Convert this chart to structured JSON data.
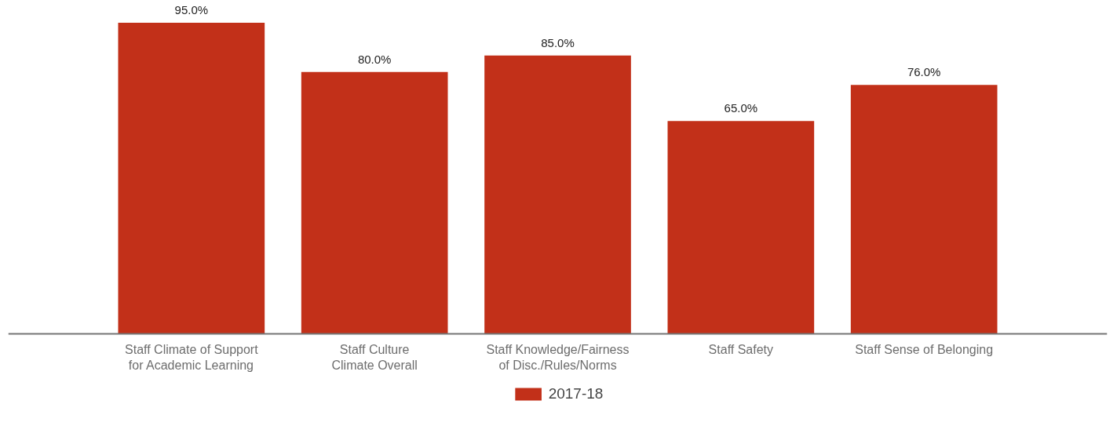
{
  "chart_data": {
    "type": "bar",
    "categories": [
      "Staff Climate of Support\nfor Academic Learning",
      "Staff Culture\nClimate Overall",
      "Staff Knowledge/Fairness\nof Disc./Rules/Norms",
      "Staff Safety",
      "Staff Sense of Belonging"
    ],
    "series": [
      {
        "name": "2017-18",
        "color": "#c23019",
        "values": [
          95,
          80,
          85,
          65,
          76
        ],
        "value_labels": [
          "95.0%",
          "80.0%",
          "85.0%",
          "65.0%",
          "76.0%"
        ]
      }
    ],
    "legend": "bottom",
    "grid": false,
    "tick_labels": "x"
  }
}
